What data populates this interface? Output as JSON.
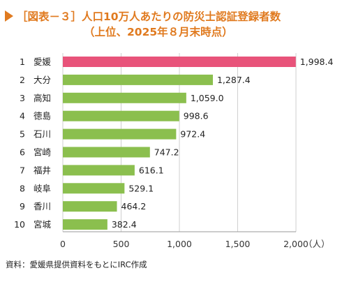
{
  "chart_data": {
    "type": "bar",
    "orientation": "horizontal",
    "title_line1": "［図表－３］人口10万人あたりの防災士認証登録者数",
    "title_line2": "（上位、2025年８月末時点）",
    "categories": [
      "愛媛",
      "大分",
      "高知",
      "徳島",
      "石川",
      "宮崎",
      "福井",
      "岐阜",
      "香川",
      "宮城"
    ],
    "ranks": [
      "1",
      "2",
      "3",
      "4",
      "5",
      "6",
      "7",
      "8",
      "9",
      "10"
    ],
    "values": [
      1998.4,
      1287.4,
      1059.0,
      998.6,
      972.4,
      747.2,
      616.1,
      529.1,
      464.2,
      382.4
    ],
    "value_labels": [
      "1,998.4",
      "1,287.4",
      "1,059.0",
      "998.6",
      "972.4",
      "747.2",
      "616.1",
      "529.1",
      "464.2",
      "382.4"
    ],
    "xlim": [
      0,
      2000
    ],
    "x_ticks": [
      0,
      500,
      1000,
      1500,
      2000
    ],
    "x_tick_labels": [
      "0",
      "500",
      "1,000",
      "1,500",
      "2,000"
    ],
    "x_unit": "（人）",
    "grid": true,
    "highlight_index": 0,
    "colors": {
      "highlight": "#e8537a",
      "bar": "#8bbf4e",
      "title": "#e07a1f",
      "grid": "#cfcfcf"
    },
    "source": "資料：愛媛県提供資料をもとにIRC作成"
  }
}
